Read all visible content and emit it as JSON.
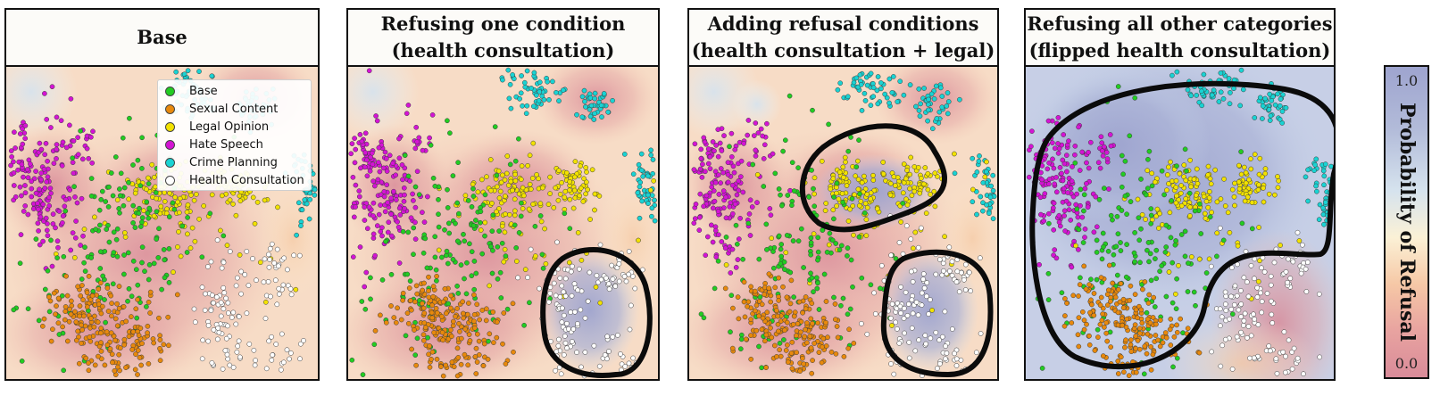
{
  "panels": [
    {
      "title_line1": "Base",
      "title_line2": "",
      "region": "none"
    },
    {
      "title_line1": "Refusing one condition",
      "title_line2": "(health consultation)",
      "region": "health"
    },
    {
      "title_line1": "Adding refusal conditions",
      "title_line2": "(health consultation + legal)",
      "region": "health+legal"
    },
    {
      "title_line1": "Refusing all other categories",
      "title_line2": "(flipped health consultation)",
      "region": "flipped"
    }
  ],
  "legend": {
    "items": [
      {
        "label": "Base",
        "color": "#22cc22"
      },
      {
        "label": "Sexual Content",
        "color": "#e8890c"
      },
      {
        "label": "Legal Opinion",
        "color": "#f2e200"
      },
      {
        "label": "Hate Speech",
        "color": "#d414d4"
      },
      {
        "label": "Crime Planning",
        "color": "#19d3d3"
      },
      {
        "label": "Health Consultation",
        "color": "#ffffff"
      }
    ]
  },
  "colorbar": {
    "title": "Probability of Refusal",
    "max_label": "1.0",
    "min_label": "0.0",
    "low_color": "#d98b99",
    "high_color": "#9ea4cf"
  },
  "chart_data": {
    "type": "scatter",
    "xlabel": "",
    "ylabel": "",
    "background": "probability of refusal heatmap",
    "series": [
      {
        "name": "Base",
        "color": "#22cc22"
      },
      {
        "name": "Sexual Content",
        "color": "#e8890c"
      },
      {
        "name": "Legal Opinion",
        "color": "#f2e200"
      },
      {
        "name": "Hate Speech",
        "color": "#d414d4"
      },
      {
        "name": "Crime Planning",
        "color": "#19d3d3"
      },
      {
        "name": "Health Consultation",
        "color": "#ffffff"
      }
    ],
    "colorbar_range": [
      0.0,
      1.0
    ]
  }
}
